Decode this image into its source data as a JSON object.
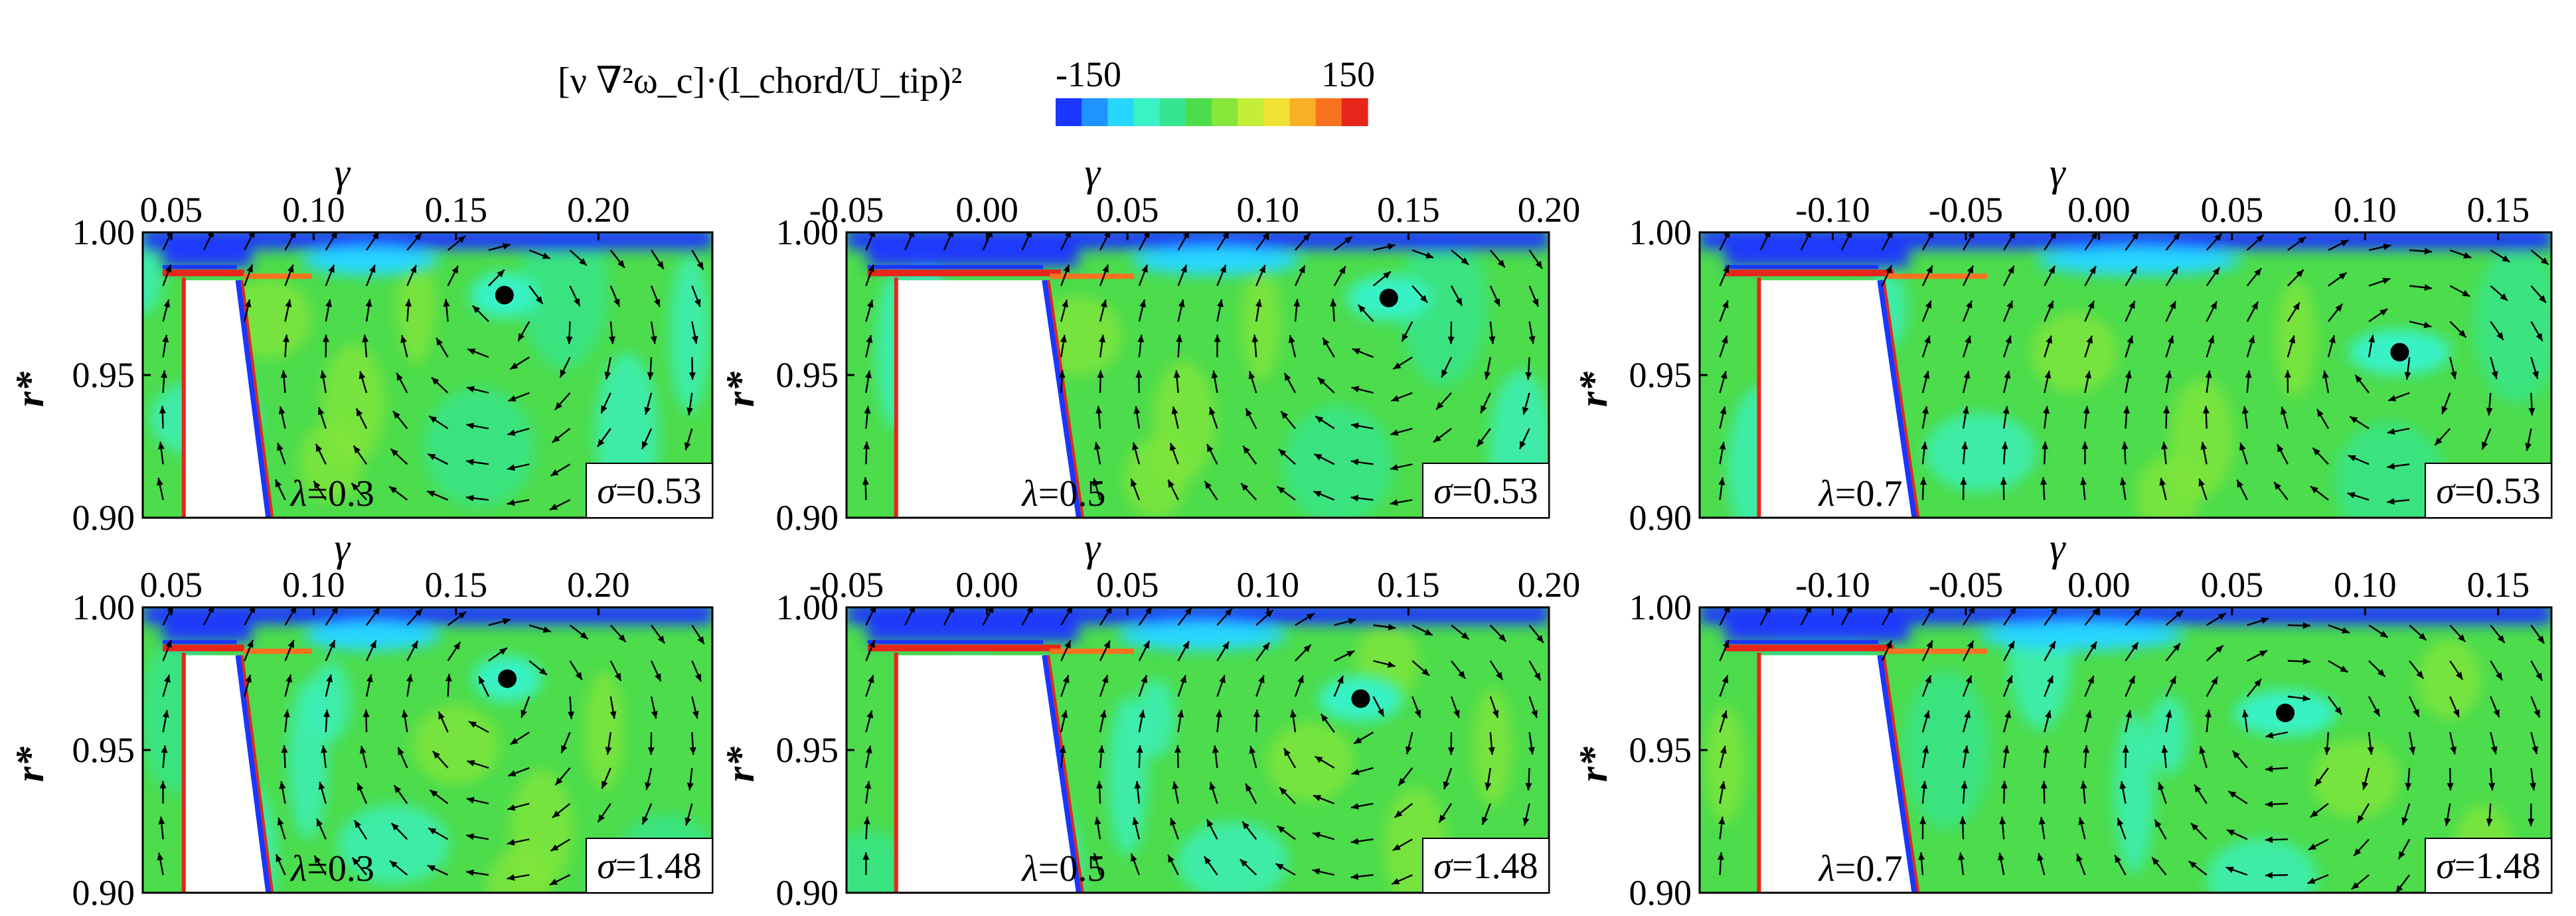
{
  "header": {
    "quantity_label": "[ν ∇²ω_c]·(l_chord/U_tip)²",
    "colorbar_min": "-150",
    "colorbar_max": "150",
    "colorbar_colors": [
      "#1a36ff",
      "#1f93ff",
      "#27d7ff",
      "#39f2c6",
      "#35e592",
      "#4cdc4c",
      "#86e639",
      "#c4ee37",
      "#f2e233",
      "#f8b026",
      "#f8721f",
      "#e8251a"
    ]
  },
  "chart_data": [
    {
      "type": "heatmap",
      "lambda": "0.3",
      "sigma": "0.53",
      "x_ticks": [
        "0.05",
        "0.10",
        "0.15",
        "0.20"
      ],
      "y_ticks": [
        "1.00",
        "0.95",
        "0.90"
      ],
      "xlabel": "γ",
      "ylabel": "r*",
      "xlim": [
        0.04,
        0.24
      ],
      "ylim": [
        0.9,
        1.0
      ],
      "vortex_center": {
        "x": 0.167,
        "y": 0.978
      }
    },
    {
      "type": "heatmap",
      "lambda": "0.5",
      "sigma": "0.53",
      "x_ticks": [
        "-0.05",
        "0.00",
        "0.05",
        "0.10",
        "0.15",
        "0.20"
      ],
      "y_ticks": [
        "1.00",
        "0.95",
        "0.90"
      ],
      "xlabel": "γ",
      "ylabel": "r*",
      "xlim": [
        -0.05,
        0.2
      ],
      "ylim": [
        0.9,
        1.0
      ],
      "vortex_center": {
        "x": 0.143,
        "y": 0.977
      }
    },
    {
      "type": "heatmap",
      "lambda": "0.7",
      "sigma": "0.53",
      "x_ticks": [
        "-0.10",
        "-0.05",
        "0.00",
        "0.05",
        "0.10",
        "0.15"
      ],
      "y_ticks": [
        "1.00",
        "0.95",
        "0.90"
      ],
      "xlabel": "γ",
      "ylabel": "r*",
      "xlim": [
        -0.15,
        0.17
      ],
      "ylim": [
        0.9,
        1.0
      ],
      "vortex_center": {
        "x": 0.113,
        "y": 0.958
      }
    },
    {
      "type": "heatmap",
      "lambda": "0.3",
      "sigma": "1.48",
      "x_ticks": [
        "0.05",
        "0.10",
        "0.15",
        "0.20"
      ],
      "y_ticks": [
        "1.00",
        "0.95",
        "0.90"
      ],
      "xlabel": "γ",
      "ylabel": "r*",
      "xlim": [
        0.04,
        0.24
      ],
      "ylim": [
        0.9,
        1.0
      ],
      "vortex_center": {
        "x": 0.168,
        "y": 0.975
      }
    },
    {
      "type": "heatmap",
      "lambda": "0.5",
      "sigma": "1.48",
      "x_ticks": [
        "-0.05",
        "0.00",
        "0.05",
        "0.10",
        "0.15",
        "0.20"
      ],
      "y_ticks": [
        "1.00",
        "0.95",
        "0.90"
      ],
      "xlabel": "γ",
      "ylabel": "r*",
      "xlim": [
        -0.05,
        0.2
      ],
      "ylim": [
        0.9,
        1.0
      ],
      "vortex_center": {
        "x": 0.133,
        "y": 0.968
      }
    },
    {
      "type": "heatmap",
      "lambda": "0.7",
      "sigma": "1.48",
      "x_ticks": [
        "-0.10",
        "-0.05",
        "0.00",
        "0.05",
        "0.10",
        "0.15"
      ],
      "y_ticks": [
        "1.00",
        "0.95",
        "0.90"
      ],
      "xlabel": "γ",
      "ylabel": "r*",
      "xlim": [
        -0.15,
        0.17
      ],
      "ylim": [
        0.9,
        1.0
      ],
      "vortex_center": {
        "x": 0.07,
        "y": 0.963
      }
    }
  ]
}
